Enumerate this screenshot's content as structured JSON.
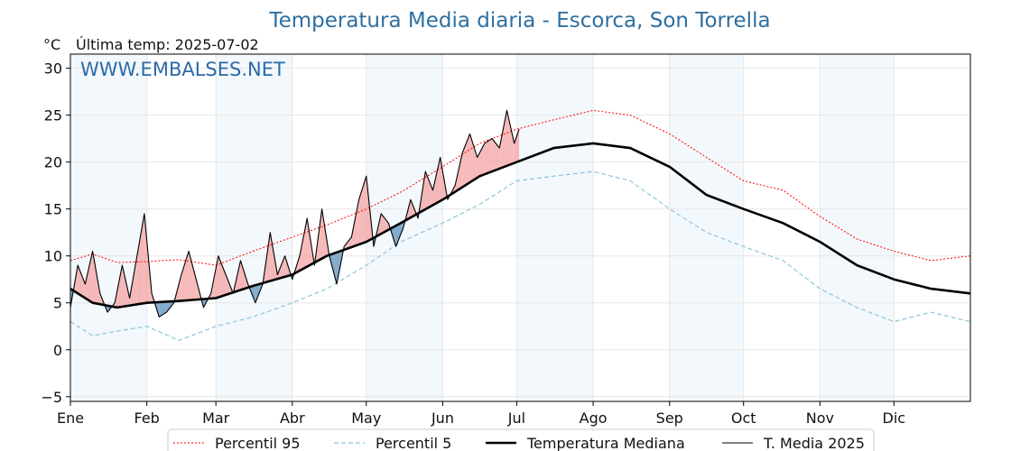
{
  "chart_data": {
    "type": "line",
    "title": "Temperatura Media diaria - Escorca, Son Torrella",
    "unit_label": "°C",
    "last_temp_label": "Última temp: 2025-07-02",
    "watermark": "WWW.EMBALSES.NET",
    "ylim": [
      -5.5,
      31.5
    ],
    "yticks": [
      -5,
      0,
      5,
      10,
      15,
      20,
      25,
      30
    ],
    "ytick_labels": [
      "−5",
      "0",
      "5",
      "10",
      "15",
      "20",
      "25",
      "30"
    ],
    "xlim": [
      1,
      366
    ],
    "months": [
      {
        "label": "Ene",
        "start": 1
      },
      {
        "label": "Feb",
        "start": 32
      },
      {
        "label": "Mar",
        "start": 60
      },
      {
        "label": "Abr",
        "start": 91
      },
      {
        "label": "May",
        "start": 121
      },
      {
        "label": "Jun",
        "start": 152
      },
      {
        "label": "Jul",
        "start": 182
      },
      {
        "label": "Ago",
        "start": 213
      },
      {
        "label": "Sep",
        "start": 244
      },
      {
        "label": "Oct",
        "start": 274
      },
      {
        "label": "Nov",
        "start": 305
      },
      {
        "label": "Dic",
        "start": 335
      }
    ],
    "shaded_months": [
      "Ene",
      "Mar",
      "May",
      "Jul",
      "Sep",
      "Nov"
    ],
    "grid": true,
    "legend_position": "bottom",
    "series": [
      {
        "name": "Percentil 95",
        "color": "#ff0000",
        "style": "dotted",
        "x": [
          1,
          10,
          20,
          32,
          45,
          60,
          75,
          91,
          105,
          121,
          135,
          152,
          167,
          182,
          197,
          213,
          228,
          244,
          259,
          274,
          290,
          305,
          320,
          335,
          350,
          366
        ],
        "y": [
          9.5,
          10.2,
          9.3,
          9.4,
          9.6,
          9.0,
          10.5,
          12.0,
          13.3,
          15.0,
          16.8,
          19.5,
          22.0,
          23.5,
          24.5,
          25.5,
          25.0,
          23.0,
          20.5,
          18.0,
          17.0,
          14.2,
          11.8,
          10.5,
          9.5,
          10.0
        ]
      },
      {
        "name": "Percentil 5",
        "color": "#8ec5dc",
        "style": "dashed",
        "x": [
          1,
          10,
          20,
          32,
          45,
          60,
          75,
          91,
          105,
          121,
          135,
          152,
          167,
          182,
          197,
          213,
          228,
          244,
          259,
          274,
          290,
          305,
          320,
          335,
          350,
          366
        ],
        "y": [
          3.0,
          1.5,
          2.0,
          2.5,
          1.0,
          2.5,
          3.5,
          5.0,
          6.5,
          9.0,
          11.5,
          13.5,
          15.5,
          18.0,
          18.5,
          19.0,
          18.0,
          15.0,
          12.5,
          11.0,
          9.5,
          6.5,
          4.5,
          3.0,
          4.0,
          3.0
        ]
      },
      {
        "name": "Temperatura Mediana",
        "color": "#000000",
        "style": "thick",
        "x": [
          1,
          10,
          20,
          32,
          45,
          60,
          75,
          91,
          105,
          121,
          135,
          152,
          167,
          182,
          197,
          213,
          228,
          244,
          259,
          274,
          290,
          305,
          320,
          335,
          350,
          366
        ],
        "y": [
          6.5,
          5.0,
          4.5,
          5.0,
          5.2,
          5.5,
          6.8,
          8.0,
          10.0,
          11.5,
          13.5,
          16.0,
          18.5,
          20.0,
          21.5,
          22.0,
          21.5,
          19.5,
          16.5,
          15.0,
          13.5,
          11.5,
          9.0,
          7.5,
          6.5,
          6.0
        ]
      },
      {
        "name": "T. Media 2025",
        "color": "#000000",
        "style": "thin",
        "x": [
          1,
          4,
          7,
          10,
          13,
          16,
          19,
          22,
          25,
          28,
          31,
          34,
          37,
          40,
          43,
          46,
          49,
          52,
          55,
          58,
          61,
          64,
          67,
          70,
          73,
          76,
          79,
          82,
          85,
          88,
          91,
          94,
          97,
          100,
          103,
          106,
          109,
          112,
          115,
          118,
          121,
          124,
          127,
          130,
          133,
          136,
          139,
          142,
          145,
          148,
          151,
          154,
          157,
          160,
          163,
          166,
          169,
          172,
          175,
          178,
          181,
          183
        ],
        "y": [
          4.5,
          9.0,
          7.0,
          10.5,
          6.0,
          4.0,
          5.0,
          9.0,
          5.5,
          10.0,
          14.5,
          6.0,
          3.5,
          4.0,
          5.0,
          8.0,
          10.5,
          7.5,
          4.5,
          6.0,
          10.0,
          8.0,
          6.0,
          9.5,
          7.0,
          5.0,
          7.0,
          12.5,
          8.0,
          10.0,
          7.5,
          10.0,
          14.0,
          9.0,
          15.0,
          10.0,
          7.0,
          11.0,
          12.0,
          16.0,
          18.5,
          11.0,
          14.5,
          13.5,
          11.0,
          13.0,
          16.0,
          14.0,
          19.0,
          17.0,
          20.5,
          16.0,
          17.5,
          21.0,
          23.0,
          20.5,
          22.0,
          22.5,
          21.5,
          25.5,
          22.0,
          23.5
        ]
      }
    ]
  }
}
